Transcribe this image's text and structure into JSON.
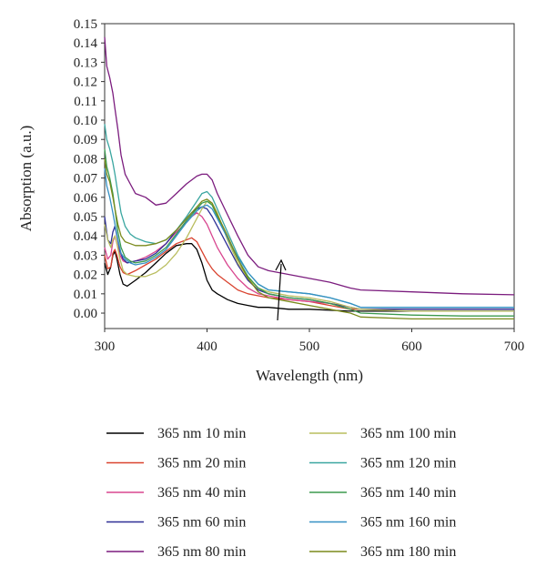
{
  "chart_data": {
    "type": "line",
    "title": "",
    "xlabel": "Wavelength (nm)",
    "ylabel": "Absorption (a.u.)",
    "xlim": [
      300,
      700
    ],
    "ylim": [
      -0.008,
      0.15
    ],
    "xticks": [
      300,
      400,
      500,
      600,
      700
    ],
    "yticks": [
      "0.00",
      "0.01",
      "0.02",
      "0.03",
      "0.04",
      "0.05",
      "0.06",
      "0.07",
      "0.08",
      "0.09",
      "0.10",
      "0.11",
      "0.12",
      "0.13",
      "0.14",
      "0.15"
    ],
    "grid": false,
    "legend_position": "bottom",
    "annotation": "arrow-up",
    "series": [
      {
        "name": "365 nm 10 min",
        "color": "#000000",
        "x": [
          300,
          303,
          306,
          308,
          310,
          312,
          315,
          318,
          322,
          330,
          340,
          350,
          360,
          370,
          380,
          385,
          390,
          395,
          400,
          405,
          410,
          420,
          430,
          440,
          450,
          460,
          480,
          500,
          520,
          540,
          550,
          600,
          650,
          700
        ],
        "y": [
          0.026,
          0.02,
          0.024,
          0.03,
          0.032,
          0.028,
          0.02,
          0.015,
          0.014,
          0.017,
          0.021,
          0.026,
          0.031,
          0.035,
          0.036,
          0.036,
          0.033,
          0.026,
          0.017,
          0.012,
          0.01,
          0.007,
          0.005,
          0.004,
          0.003,
          0.003,
          0.002,
          0.002,
          0.0015,
          0.001,
          0.001,
          0.001,
          0.001,
          0.001
        ]
      },
      {
        "name": "365 nm 20 min",
        "color": "#d9432f",
        "x": [
          300,
          303,
          306,
          308,
          310,
          312,
          315,
          318,
          322,
          330,
          340,
          350,
          360,
          370,
          380,
          385,
          390,
          395,
          400,
          405,
          410,
          420,
          430,
          440,
          450,
          460,
          480,
          500,
          520,
          540,
          550,
          600,
          650,
          700
        ],
        "y": [
          0.03,
          0.023,
          0.024,
          0.031,
          0.033,
          0.03,
          0.024,
          0.021,
          0.02,
          0.022,
          0.025,
          0.028,
          0.032,
          0.036,
          0.038,
          0.039,
          0.037,
          0.032,
          0.027,
          0.023,
          0.02,
          0.016,
          0.012,
          0.01,
          0.009,
          0.008,
          0.007,
          0.006,
          0.004,
          0.002,
          0.002,
          0.002,
          0.002,
          0.002
        ]
      },
      {
        "name": "365 nm 40 min",
        "color": "#d8468f",
        "x": [
          300,
          303,
          306,
          308,
          310,
          312,
          315,
          318,
          322,
          330,
          340,
          350,
          360,
          370,
          380,
          385,
          390,
          395,
          400,
          405,
          410,
          420,
          430,
          440,
          450,
          460,
          480,
          500,
          520,
          540,
          550,
          600,
          650,
          700
        ],
        "y": [
          0.034,
          0.028,
          0.03,
          0.037,
          0.04,
          0.036,
          0.03,
          0.027,
          0.026,
          0.027,
          0.029,
          0.032,
          0.036,
          0.042,
          0.047,
          0.05,
          0.052,
          0.05,
          0.046,
          0.04,
          0.034,
          0.025,
          0.018,
          0.013,
          0.01,
          0.009,
          0.007,
          0.006,
          0.005,
          0.003,
          0.002,
          0.002,
          0.002,
          0.002
        ]
      },
      {
        "name": "365 nm 60 min",
        "color": "#2e2f96",
        "x": [
          300,
          303,
          306,
          308,
          310,
          312,
          315,
          318,
          322,
          330,
          340,
          350,
          360,
          370,
          380,
          385,
          390,
          395,
          400,
          405,
          410,
          420,
          430,
          440,
          450,
          460,
          480,
          500,
          520,
          540,
          550,
          600,
          650,
          700
        ],
        "y": [
          0.05,
          0.038,
          0.036,
          0.042,
          0.045,
          0.04,
          0.032,
          0.028,
          0.026,
          0.027,
          0.028,
          0.031,
          0.036,
          0.043,
          0.049,
          0.052,
          0.054,
          0.055,
          0.054,
          0.05,
          0.045,
          0.035,
          0.025,
          0.017,
          0.012,
          0.01,
          0.008,
          0.007,
          0.005,
          0.003,
          0.002,
          0.002,
          0.002,
          0.002
        ]
      },
      {
        "name": "365 nm 80 min",
        "color": "#7b1c7e",
        "x": [
          300,
          302,
          305,
          308,
          310,
          313,
          316,
          320,
          325,
          330,
          340,
          350,
          360,
          370,
          380,
          390,
          395,
          400,
          405,
          410,
          420,
          430,
          440,
          450,
          460,
          480,
          500,
          520,
          540,
          550,
          600,
          650,
          700
        ],
        "y": [
          0.143,
          0.128,
          0.122,
          0.114,
          0.106,
          0.095,
          0.082,
          0.072,
          0.067,
          0.062,
          0.06,
          0.056,
          0.057,
          0.062,
          0.067,
          0.071,
          0.072,
          0.072,
          0.069,
          0.062,
          0.051,
          0.04,
          0.03,
          0.024,
          0.022,
          0.02,
          0.018,
          0.016,
          0.013,
          0.012,
          0.011,
          0.01,
          0.0095
        ]
      },
      {
        "name": "365 nm 100 min",
        "color": "#b9bd5e",
        "x": [
          300,
          303,
          306,
          308,
          310,
          312,
          315,
          318,
          322,
          330,
          340,
          350,
          360,
          370,
          380,
          385,
          390,
          395,
          400,
          405,
          410,
          420,
          430,
          440,
          450,
          460,
          480,
          500,
          520,
          540,
          550,
          600,
          650,
          700
        ],
        "y": [
          0.046,
          0.038,
          0.034,
          0.038,
          0.04,
          0.036,
          0.028,
          0.022,
          0.02,
          0.019,
          0.019,
          0.021,
          0.025,
          0.031,
          0.039,
          0.044,
          0.049,
          0.054,
          0.058,
          0.057,
          0.052,
          0.038,
          0.026,
          0.018,
          0.013,
          0.011,
          0.009,
          0.008,
          0.006,
          0.003,
          0.002,
          0.001,
          0.001,
          0.001
        ]
      },
      {
        "name": "365 nm 120 min",
        "color": "#3aa6a0",
        "x": [
          300,
          302,
          305,
          308,
          310,
          313,
          316,
          320,
          325,
          330,
          340,
          350,
          360,
          370,
          380,
          390,
          395,
          400,
          405,
          410,
          420,
          430,
          440,
          450,
          460,
          480,
          500,
          520,
          540,
          550,
          600,
          650,
          700
        ],
        "y": [
          0.098,
          0.09,
          0.085,
          0.078,
          0.072,
          0.062,
          0.052,
          0.045,
          0.041,
          0.039,
          0.037,
          0.036,
          0.038,
          0.043,
          0.05,
          0.058,
          0.062,
          0.063,
          0.06,
          0.054,
          0.042,
          0.03,
          0.021,
          0.015,
          0.012,
          0.011,
          0.01,
          0.008,
          0.005,
          0.003,
          0.003,
          0.003,
          0.003
        ]
      },
      {
        "name": "365 nm 140 min",
        "color": "#3b9a4e",
        "x": [
          300,
          302,
          305,
          308,
          310,
          313,
          316,
          320,
          325,
          330,
          340,
          350,
          360,
          370,
          380,
          390,
          395,
          400,
          405,
          410,
          420,
          430,
          440,
          450,
          460,
          480,
          500,
          520,
          540,
          550,
          600,
          650,
          700
        ],
        "y": [
          0.085,
          0.076,
          0.07,
          0.062,
          0.054,
          0.042,
          0.034,
          0.029,
          0.027,
          0.026,
          0.027,
          0.03,
          0.034,
          0.041,
          0.048,
          0.054,
          0.057,
          0.058,
          0.056,
          0.05,
          0.039,
          0.028,
          0.019,
          0.013,
          0.01,
          0.008,
          0.007,
          0.005,
          0.002,
          0.0,
          -0.001,
          -0.0015,
          -0.0015
        ]
      },
      {
        "name": "365 nm 160 min",
        "color": "#3590c4",
        "x": [
          300,
          302,
          305,
          308,
          310,
          313,
          316,
          320,
          325,
          330,
          340,
          350,
          360,
          370,
          380,
          390,
          395,
          400,
          405,
          410,
          420,
          430,
          440,
          450,
          460,
          480,
          500,
          520,
          540,
          550,
          600,
          650,
          700
        ],
        "y": [
          0.075,
          0.066,
          0.06,
          0.052,
          0.046,
          0.038,
          0.031,
          0.028,
          0.026,
          0.025,
          0.026,
          0.029,
          0.033,
          0.04,
          0.047,
          0.053,
          0.055,
          0.056,
          0.054,
          0.049,
          0.039,
          0.029,
          0.021,
          0.015,
          0.012,
          0.011,
          0.01,
          0.008,
          0.005,
          0.003,
          0.003,
          0.003,
          0.003
        ]
      },
      {
        "name": "365 nm 180 min",
        "color": "#7a8a1c",
        "x": [
          300,
          302,
          305,
          308,
          310,
          313,
          316,
          320,
          325,
          330,
          340,
          350,
          360,
          370,
          380,
          390,
          395,
          400,
          405,
          410,
          420,
          430,
          440,
          450,
          460,
          480,
          500,
          520,
          540,
          550,
          600,
          650,
          700
        ],
        "y": [
          0.08,
          0.072,
          0.068,
          0.06,
          0.054,
          0.046,
          0.04,
          0.037,
          0.036,
          0.035,
          0.035,
          0.036,
          0.038,
          0.043,
          0.049,
          0.055,
          0.058,
          0.059,
          0.057,
          0.051,
          0.04,
          0.028,
          0.018,
          0.011,
          0.008,
          0.006,
          0.004,
          0.002,
          0.0,
          -0.002,
          -0.003,
          -0.003,
          -0.003
        ]
      }
    ]
  }
}
